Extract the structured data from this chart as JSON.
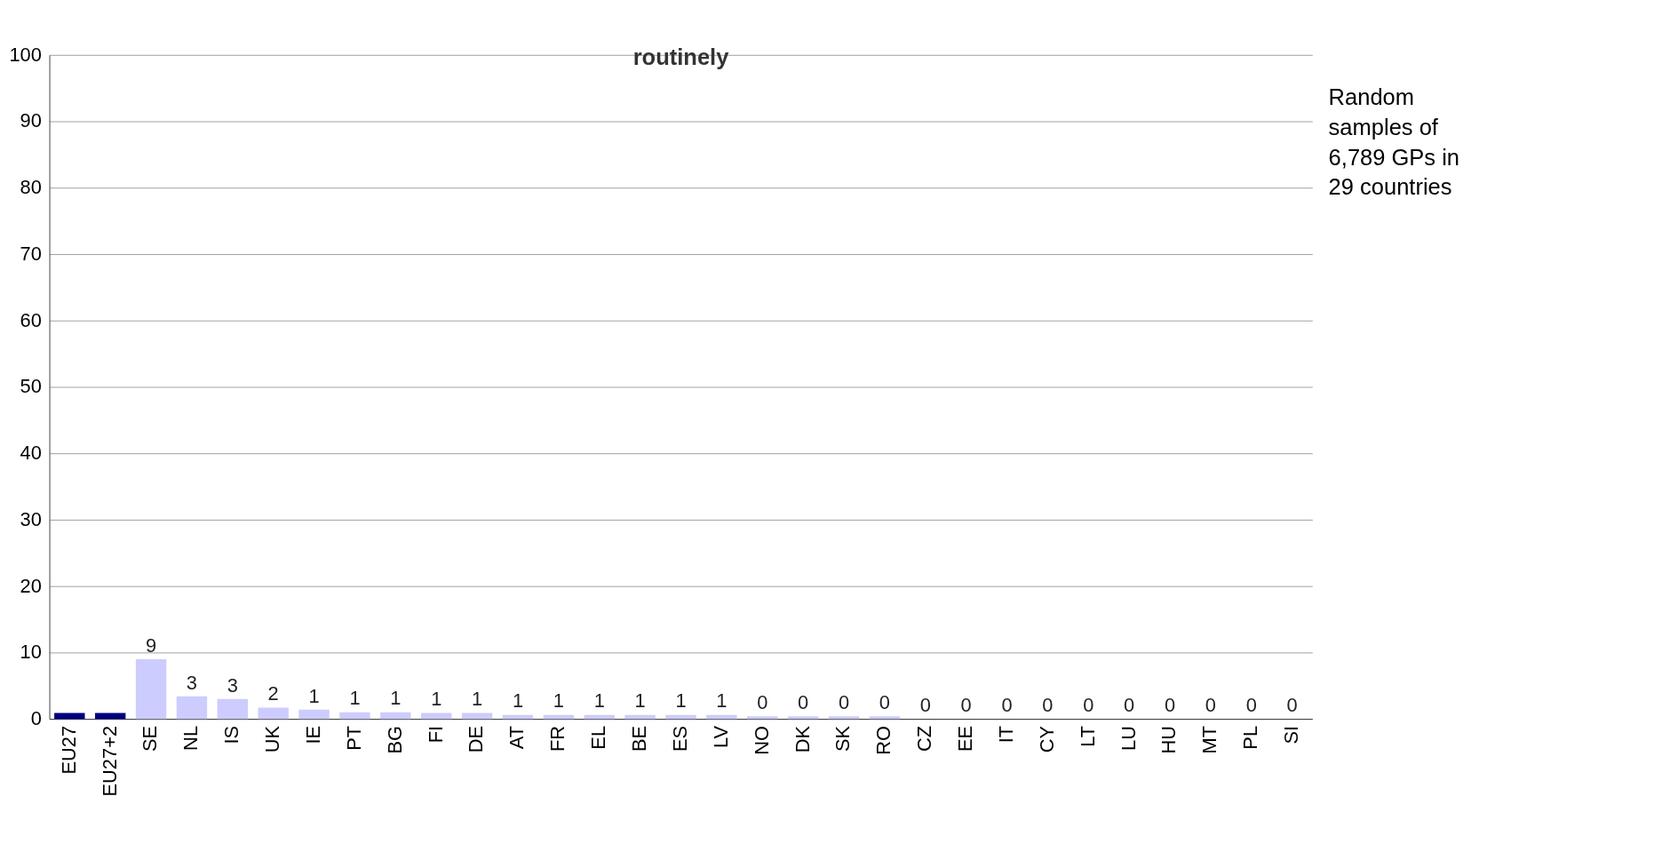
{
  "chart_data": {
    "type": "bar",
    "title": "routinely",
    "categories": [
      "EU27",
      "EU27+2",
      "SE",
      "NL",
      "IS",
      "UK",
      "IE",
      "PT",
      "BG",
      "FI",
      "DE",
      "AT",
      "FR",
      "EL",
      "BE",
      "ES",
      "LV",
      "NO",
      "DK",
      "SK",
      "RO",
      "CZ",
      "EE",
      "IT",
      "CY",
      "LT",
      "LU",
      "HU",
      "MT",
      "PL",
      "SI"
    ],
    "values": [
      0.9,
      0.9,
      9,
      3.4,
      3,
      1.7,
      1.4,
      1,
      1,
      0.9,
      0.9,
      0.6,
      0.6,
      0.6,
      0.6,
      0.6,
      0.6,
      0.4,
      0.4,
      0.4,
      0.4,
      0,
      0,
      0,
      0,
      0,
      0,
      0,
      0,
      0,
      0
    ],
    "colors": [
      "#000080",
      "#000080",
      "#ccccff",
      "#ccccff",
      "#ccccff",
      "#ccccff",
      "#ccccff",
      "#ccccff",
      "#ccccff",
      "#ccccff",
      "#ccccff",
      "#ccccff",
      "#ccccff",
      "#ccccff",
      "#ccccff",
      "#ccccff",
      "#ccccff",
      "#ccccff",
      "#ccccff",
      "#ccccff",
      "#ccccff",
      "#ccccff",
      "#ccccff",
      "#ccccff",
      "#ccccff",
      "#ccccff",
      "#ccccff",
      "#ccccff",
      "#ccccff",
      "#ccccff",
      "#ccccff"
    ],
    "value_labels": [
      null,
      null,
      "9",
      "3",
      "3",
      "2",
      "1",
      "1",
      "1",
      "1",
      "1",
      "1",
      "1",
      "1",
      "1",
      "1",
      "1",
      "0",
      "0",
      "0",
      "0",
      "0",
      "0",
      "0",
      "0",
      "0",
      "0",
      "0",
      "0",
      "0",
      "0"
    ],
    "ylim": [
      0,
      100
    ],
    "yticks": [
      0,
      10,
      20,
      30,
      40,
      50,
      60,
      70,
      80,
      90,
      100
    ],
    "grid": "y",
    "annotations": [
      "Random samples of 6,789 GPs in 29 countries"
    ]
  }
}
